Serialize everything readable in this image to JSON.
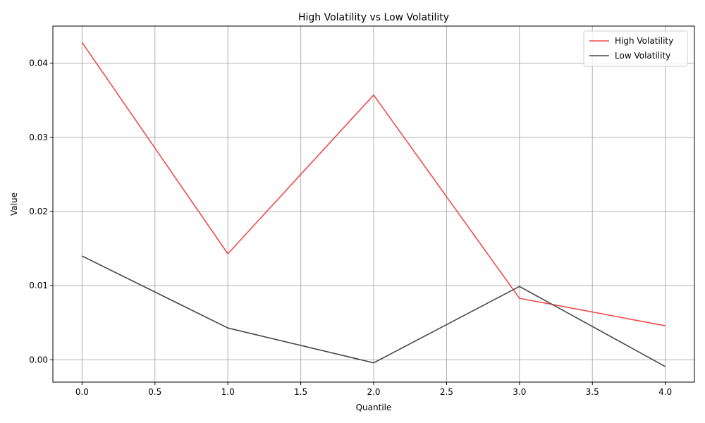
{
  "chart_data": {
    "type": "line",
    "title": "High Volatility vs Low Volatility",
    "xlabel": "Quantile",
    "ylabel": "Value",
    "xlim": [
      -0.2,
      4.2
    ],
    "ylim": [
      -0.003,
      0.045
    ],
    "xticks": [
      0.0,
      0.5,
      1.0,
      1.5,
      2.0,
      2.5,
      3.0,
      3.5,
      4.0
    ],
    "xtick_labels": [
      "0.0",
      "0.5",
      "1.0",
      "1.5",
      "2.0",
      "2.5",
      "3.0",
      "3.5",
      "4.0"
    ],
    "yticks": [
      0.0,
      0.01,
      0.02,
      0.03,
      0.04
    ],
    "ytick_labels": [
      "0.00",
      "0.01",
      "0.02",
      "0.03",
      "0.04"
    ],
    "grid": true,
    "legend_position": "top-right",
    "x": [
      0,
      1,
      2,
      3,
      4
    ],
    "series": [
      {
        "name": "High Volatility",
        "color": "#f04b4b",
        "values": [
          0.0428,
          0.0143,
          0.0357,
          0.0083,
          0.0046
        ]
      },
      {
        "name": "Low Volatility",
        "color": "#474747",
        "values": [
          0.014,
          0.0043,
          -0.0004,
          0.0099,
          -0.0009
        ]
      }
    ]
  }
}
